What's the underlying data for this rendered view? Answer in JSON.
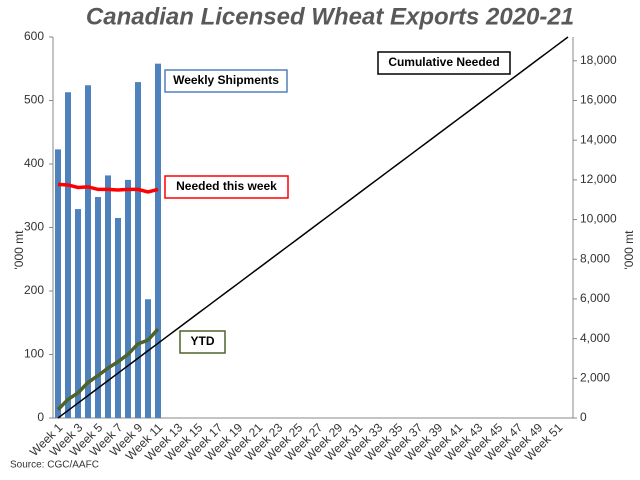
{
  "chart_data": {
    "type": "combo",
    "title": "Canadian Licensed Wheat Exports 2020-21",
    "y_label": "'000 mt",
    "y2_label": "'000 mt",
    "source": "Source: CGC/AAFC",
    "categories": [
      "Week 1",
      null,
      "Week 3",
      null,
      "Week 5",
      null,
      "Week 7",
      null,
      "Week 9",
      null,
      "Week 11",
      null,
      "Week 13",
      null,
      "Week 15",
      null,
      "Week 17",
      null,
      "Week 19",
      null,
      "Week 21",
      null,
      "Week 23",
      null,
      "Week 25",
      null,
      "Week 27",
      null,
      "Week 29",
      null,
      "Week 31",
      null,
      "Week 33",
      null,
      "Week 35",
      null,
      "Week 37",
      null,
      "Week 39",
      null,
      "Week 41",
      null,
      "Week 43",
      null,
      "Week 45",
      null,
      "Week 47",
      null,
      "Week 49",
      null,
      "Week 51",
      null
    ],
    "ylim": [
      0,
      600
    ],
    "yticks": [
      0,
      100,
      200,
      300,
      400,
      500,
      600
    ],
    "y2lim": [
      0,
      19200
    ],
    "y2ticks": [
      0,
      {
        "value": 2000,
        "label": "2,000"
      },
      {
        "value": 4000,
        "label": "4,000"
      },
      {
        "value": 6000,
        "label": "6,000"
      },
      {
        "value": 8000,
        "label": "8,000"
      },
      {
        "value": 10000,
        "label": "10,000"
      },
      {
        "value": 12000,
        "label": "12,000"
      },
      {
        "value": 14000,
        "label": "14,000"
      },
      {
        "value": 16000,
        "label": "16,000"
      },
      {
        "value": 18000,
        "label": "18,000"
      }
    ],
    "series": [
      {
        "name": "Weekly Shipments",
        "type": "bar",
        "color": "#4f81bd",
        "values": [
          423,
          513,
          329,
          524,
          348,
          382,
          315,
          375,
          529,
          187,
          558,
          null,
          null,
          null,
          null,
          null,
          null,
          null,
          null,
          null,
          null,
          null,
          null,
          null,
          null,
          null,
          null,
          null,
          null,
          null,
          null,
          null,
          null,
          null,
          null,
          null,
          null,
          null,
          null,
          null,
          null,
          null,
          null,
          null,
          null,
          null,
          null,
          null,
          null,
          null,
          null,
          null
        ]
      },
      {
        "name": "Needed this week",
        "type": "line",
        "color": "#ff0000",
        "values": [
          368,
          367,
          363,
          364,
          360,
          360,
          359,
          360,
          360,
          356,
          360,
          null,
          null,
          null,
          null,
          null,
          null,
          null,
          null,
          null,
          null,
          null,
          null,
          null,
          null,
          null,
          null,
          null,
          null,
          null,
          null,
          null,
          null,
          null,
          null,
          null,
          null,
          null,
          null,
          null,
          null,
          null,
          null,
          null,
          null,
          null,
          null,
          null,
          null,
          null,
          null,
          null
        ]
      },
      {
        "name": "Cumulative Needed",
        "type": "line",
        "axis": "y2",
        "color": "#000000",
        "values": [
          0,
          376,
          753,
          1129,
          1506,
          1882,
          2259,
          2635,
          3012,
          3388,
          3765,
          4141,
          4518,
          4894,
          5271,
          5647,
          6024,
          6400,
          6776,
          7153,
          7529,
          7906,
          8282,
          8659,
          9035,
          9412,
          9788,
          10165,
          10541,
          10918,
          11294,
          11671,
          12047,
          12424,
          12800,
          13176,
          13553,
          13929,
          14306,
          14682,
          15059,
          15435,
          15812,
          16188,
          16565,
          16941,
          17318,
          17694,
          18071,
          18447,
          18824,
          19200
        ]
      },
      {
        "name": "YTD",
        "type": "line",
        "axis": "y2",
        "color": "#4f6228",
        "values": [
          423,
          936,
          1265,
          1789,
          2137,
          2519,
          2834,
          3209,
          3738,
          3925,
          4483,
          null,
          null,
          null,
          null,
          null,
          null,
          null,
          null,
          null,
          null,
          null,
          null,
          null,
          null,
          null,
          null,
          null,
          null,
          null,
          null,
          null,
          null,
          null,
          null,
          null,
          null,
          null,
          null,
          null,
          null,
          null,
          null,
          null,
          null,
          null,
          null,
          null,
          null,
          null,
          null,
          null
        ]
      }
    ]
  }
}
